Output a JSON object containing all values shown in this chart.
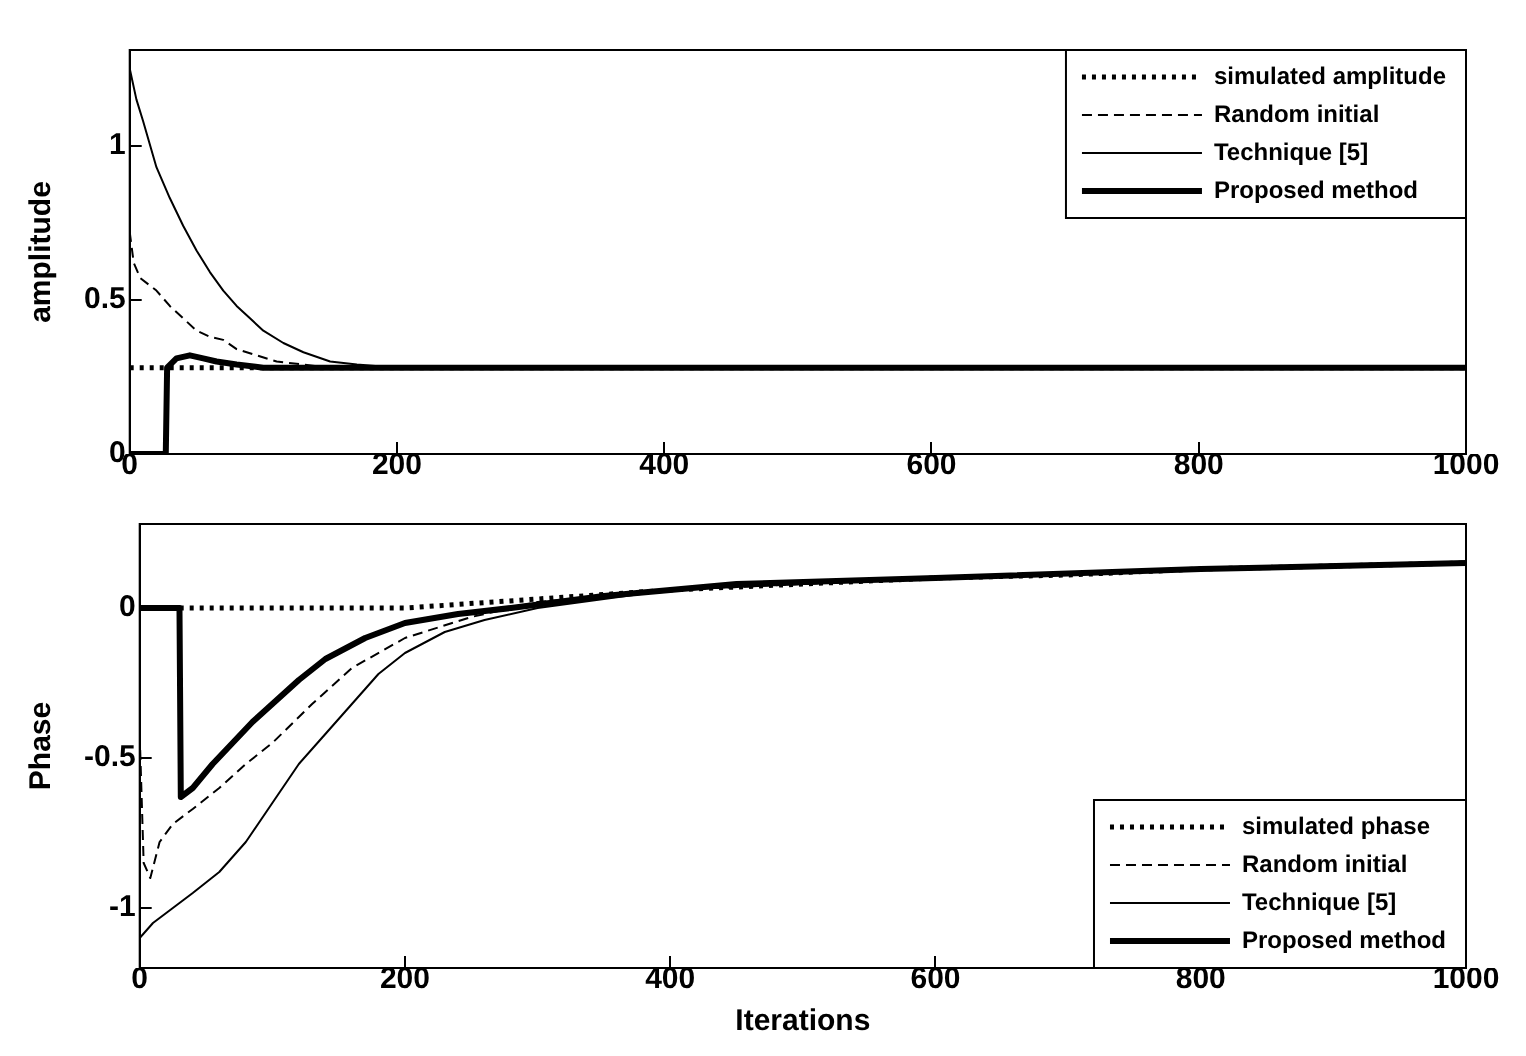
{
  "chart_data": [
    {
      "type": "line",
      "ylabel": "amplitude",
      "xlim": [
        0,
        1000
      ],
      "xticks": [
        0,
        200,
        400,
        600,
        800,
        1000
      ],
      "ylim": [
        0,
        1.31
      ],
      "yticks": [
        0,
        0.5,
        1
      ],
      "grid": false,
      "legend": "top right",
      "series": [
        {
          "name": "simulated amplitude",
          "color": "#000000",
          "line_style": "dotted",
          "x": [
            0,
            1000
          ],
          "values": [
            0.28,
            0.28
          ]
        },
        {
          "name": "Random initial",
          "color": "#000000",
          "line_style": "dashed",
          "x": [
            0,
            3,
            8,
            20,
            30,
            40,
            50,
            60,
            70,
            80,
            95,
            110,
            130,
            150,
            200,
            1000
          ],
          "values": [
            0.72,
            0.62,
            0.57,
            0.53,
            0.48,
            0.44,
            0.4,
            0.38,
            0.37,
            0.34,
            0.32,
            0.3,
            0.29,
            0.28,
            0.28,
            0.28
          ]
        },
        {
          "name": "Technique [5]",
          "color": "#000000",
          "line_style": "solid",
          "x": [
            0,
            5,
            10,
            20,
            30,
            40,
            50,
            60,
            70,
            80,
            90,
            100,
            115,
            130,
            150,
            170,
            200,
            1000
          ],
          "values": [
            1.25,
            1.15,
            1.08,
            0.93,
            0.83,
            0.74,
            0.66,
            0.59,
            0.53,
            0.48,
            0.44,
            0.4,
            0.36,
            0.33,
            0.3,
            0.29,
            0.28,
            0.28
          ]
        },
        {
          "name": "Proposed method",
          "color": "#000000",
          "line_style": "solid",
          "x": [
            0,
            27,
            28,
            35,
            45,
            55,
            65,
            80,
            100,
            120,
            1000
          ],
          "values": [
            0,
            0,
            0.28,
            0.31,
            0.32,
            0.31,
            0.3,
            0.29,
            0.28,
            0.28,
            0.28
          ]
        }
      ]
    },
    {
      "type": "line",
      "xlabel": "Iterations",
      "ylabel": "Phase",
      "xlim": [
        0,
        1000
      ],
      "xticks": [
        0,
        200,
        400,
        600,
        800,
        1000
      ],
      "ylim": [
        -1.2,
        0.28
      ],
      "yticks": [
        -1,
        -0.5,
        0
      ],
      "grid": false,
      "legend": "bottom right",
      "series": [
        {
          "name": "simulated phase",
          "color": "#000000",
          "line_style": "dotted",
          "x": [
            0,
            200,
            300,
            400,
            500,
            600,
            700,
            800,
            900,
            1000
          ],
          "values": [
            0,
            0,
            0.03,
            0.06,
            0.08,
            0.1,
            0.11,
            0.13,
            0.14,
            0.15
          ]
        },
        {
          "name": "Random initial",
          "color": "#000000",
          "line_style": "dashed",
          "x": [
            0,
            3,
            8,
            15,
            25,
            40,
            60,
            80,
            100,
            130,
            160,
            200,
            250,
            300,
            400,
            500,
            600,
            800,
            1000
          ],
          "values": [
            -0.42,
            -0.85,
            -0.9,
            -0.78,
            -0.72,
            -0.67,
            -0.6,
            -0.52,
            -0.45,
            -0.32,
            -0.2,
            -0.1,
            -0.03,
            0.02,
            0.06,
            0.08,
            0.1,
            0.13,
            0.15
          ]
        },
        {
          "name": "Technique [5]",
          "color": "#000000",
          "line_style": "solid",
          "x": [
            0,
            10,
            25,
            40,
            60,
            80,
            100,
            120,
            140,
            160,
            180,
            200,
            230,
            260,
            300,
            400,
            500,
            600,
            800,
            1000
          ],
          "values": [
            -1.1,
            -1.05,
            -1.0,
            -0.95,
            -0.88,
            -0.78,
            -0.65,
            -0.52,
            -0.42,
            -0.32,
            -0.22,
            -0.15,
            -0.08,
            -0.04,
            0.0,
            0.06,
            0.08,
            0.1,
            0.13,
            0.15
          ]
        },
        {
          "name": "Proposed method",
          "color": "#000000",
          "line_style": "solid",
          "x": [
            0,
            30,
            31,
            40,
            55,
            70,
            85,
            100,
            120,
            140,
            170,
            200,
            240,
            280,
            350,
            450,
            600,
            800,
            1000
          ],
          "values": [
            0,
            0,
            -0.63,
            -0.6,
            -0.52,
            -0.45,
            -0.38,
            -0.32,
            -0.24,
            -0.17,
            -0.1,
            -0.05,
            -0.02,
            0.0,
            0.04,
            0.08,
            0.1,
            0.13,
            0.15
          ]
        }
      ]
    }
  ]
}
